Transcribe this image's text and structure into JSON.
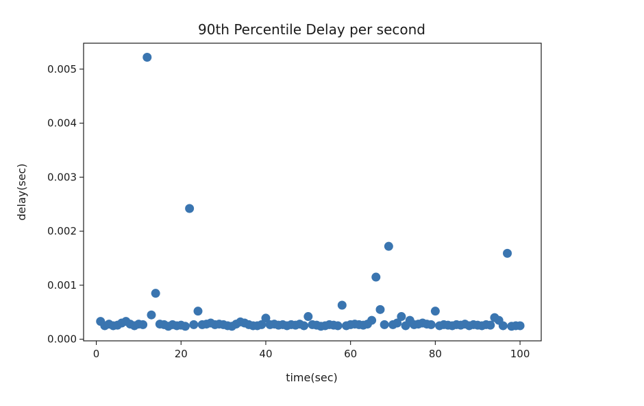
{
  "chart_data": {
    "type": "scatter",
    "title": "90th Percentile Delay per second",
    "xlabel": "time(sec)",
    "ylabel": "delay(sec)",
    "xlim": [
      -3,
      105
    ],
    "ylim": [
      -3e-05,
      0.00548
    ],
    "xticks": [
      0,
      20,
      40,
      60,
      80,
      100
    ],
    "xtick_labels": [
      "0",
      "20",
      "40",
      "60",
      "80",
      "100"
    ],
    "yticks": [
      0.0,
      0.001,
      0.002,
      0.003,
      0.004,
      0.005
    ],
    "ytick_labels": [
      "0.000",
      "0.001",
      "0.002",
      "0.003",
      "0.004",
      "0.005"
    ],
    "grid": false,
    "marker_color": "#3a75b0",
    "x": [
      1,
      2,
      3,
      4,
      5,
      6,
      7,
      8,
      9,
      10,
      11,
      12,
      13,
      14,
      15,
      16,
      17,
      18,
      19,
      20,
      21,
      22,
      23,
      24,
      25,
      26,
      27,
      28,
      29,
      30,
      31,
      32,
      33,
      34,
      35,
      36,
      37,
      38,
      39,
      40,
      41,
      42,
      43,
      44,
      45,
      46,
      47,
      48,
      49,
      50,
      51,
      52,
      53,
      54,
      55,
      56,
      57,
      58,
      59,
      60,
      61,
      62,
      63,
      64,
      65,
      66,
      67,
      68,
      69,
      70,
      71,
      72,
      73,
      74,
      75,
      76,
      77,
      78,
      79,
      80,
      81,
      82,
      83,
      84,
      85,
      86,
      87,
      88,
      89,
      90,
      91,
      92,
      93,
      94,
      95,
      96,
      97,
      98,
      99,
      100
    ],
    "y": [
      0.00033,
      0.00025,
      0.00028,
      0.00025,
      0.00026,
      0.0003,
      0.00033,
      0.00028,
      0.00025,
      0.00028,
      0.00027,
      0.00522,
      0.00045,
      0.00085,
      0.00028,
      0.00027,
      0.00024,
      0.00027,
      0.00025,
      0.00026,
      0.00024,
      0.00242,
      0.00027,
      0.00052,
      0.00027,
      0.00028,
      0.0003,
      0.00027,
      0.00028,
      0.00027,
      0.00025,
      0.00024,
      0.00028,
      0.00032,
      0.0003,
      0.00027,
      0.00025,
      0.00025,
      0.00027,
      0.00039,
      0.00027,
      0.00028,
      0.00026,
      0.00027,
      0.00025,
      0.00027,
      0.00026,
      0.00028,
      0.00025,
      0.00042,
      0.00027,
      0.00026,
      0.00024,
      0.00025,
      0.00027,
      0.00026,
      0.00025,
      0.00063,
      0.00025,
      0.00027,
      0.00028,
      0.00027,
      0.00026,
      0.00028,
      0.00035,
      0.00115,
      0.00055,
      0.00027,
      0.00172,
      0.00027,
      0.0003,
      0.00042,
      0.00025,
      0.00035,
      0.00027,
      0.00028,
      0.0003,
      0.00028,
      0.00027,
      0.00052,
      0.00025,
      0.00027,
      0.00026,
      0.00025,
      0.00027,
      0.00026,
      0.00028,
      0.00025,
      0.00027,
      0.00026,
      0.00025,
      0.00027,
      0.00026,
      0.0004,
      0.00035,
      0.00025,
      0.00159,
      0.00024,
      0.00025,
      0.00025
    ]
  }
}
